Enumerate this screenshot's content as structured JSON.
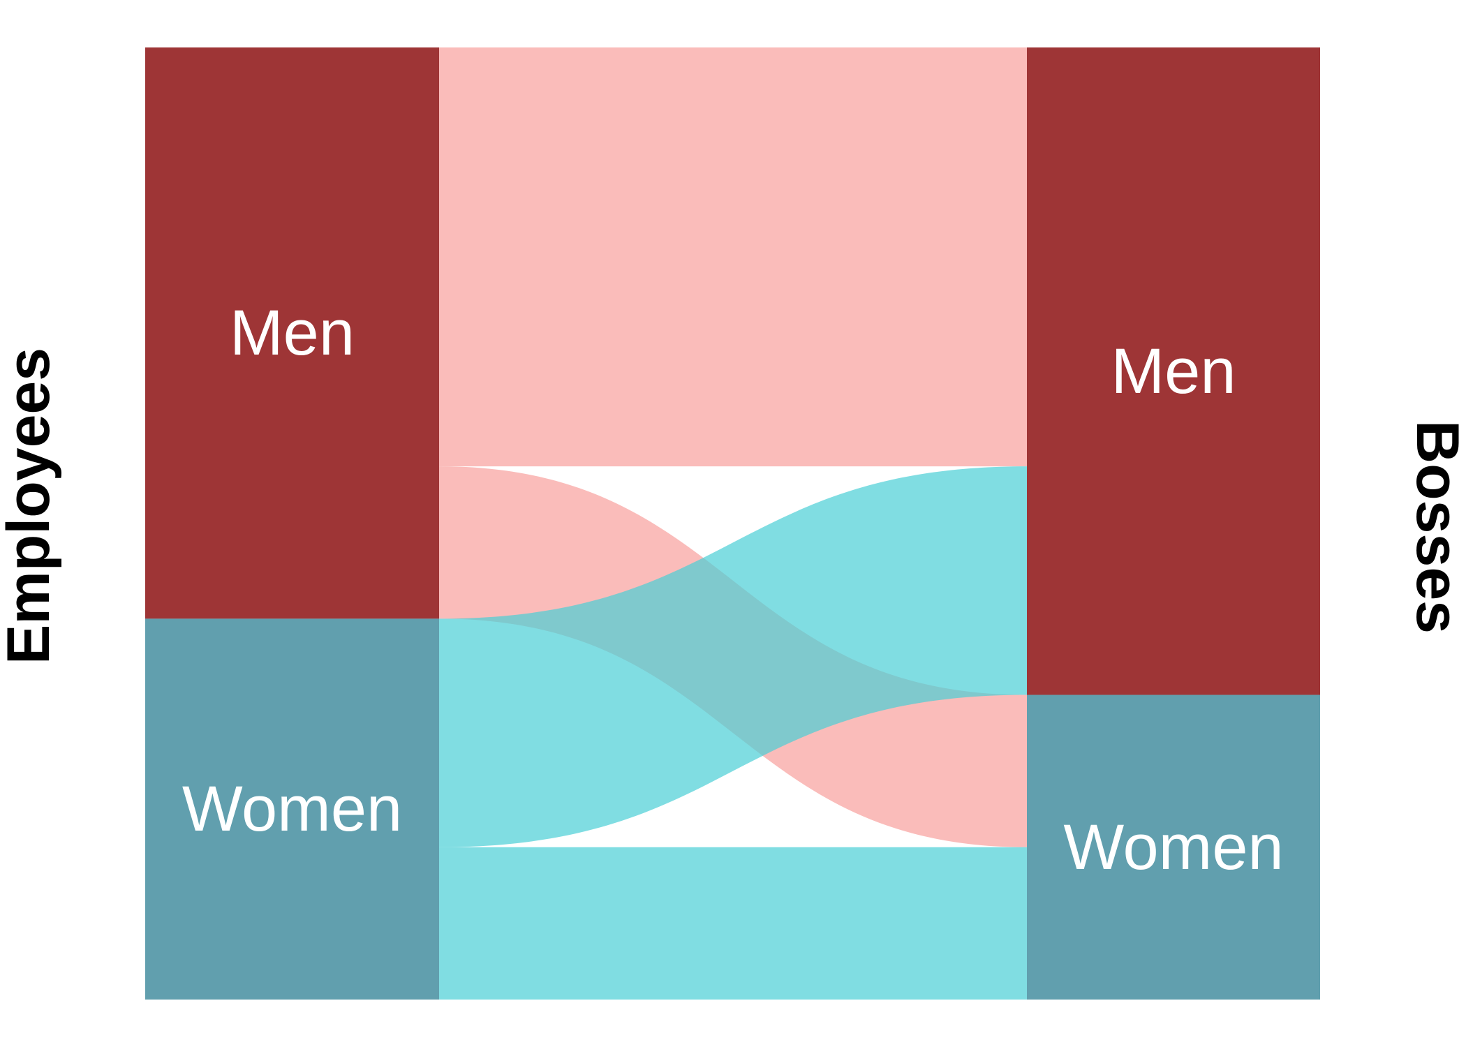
{
  "chart_data": {
    "type": "alluvial",
    "left_axis_label": "Employees",
    "right_axis_label": "Bosses",
    "left_nodes": [
      {
        "name": "Men",
        "value": 60,
        "color": "#9E3536"
      },
      {
        "name": "Women",
        "value": 40,
        "color": "#619FAE"
      }
    ],
    "right_nodes": [
      {
        "name": "Men",
        "value": 68,
        "color": "#9E3536"
      },
      {
        "name": "Women",
        "value": 32,
        "color": "#619FAE"
      }
    ],
    "flows": [
      {
        "from": "Men",
        "to": "Men",
        "value": 44,
        "color": "#F8A09C"
      },
      {
        "from": "Men",
        "to": "Women",
        "value": 16,
        "color": "#F8A09C"
      },
      {
        "from": "Women",
        "to": "Men",
        "value": 24,
        "color": "#4ACFD6"
      },
      {
        "from": "Women",
        "to": "Women",
        "value": 16,
        "color": "#4ACFD6"
      }
    ],
    "flow_opacity": 0.7
  }
}
